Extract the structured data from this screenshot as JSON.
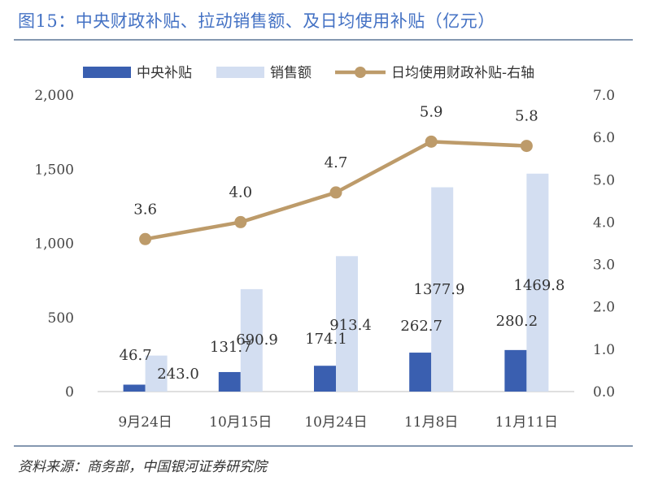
{
  "title": "图15：中央财政补贴、拉动销售额、及日均使用补贴（亿元）",
  "source": "资料来源：商务部，中国银河证券研究院",
  "colors": {
    "title": "#4472c4",
    "bar_subsidy": "#3a5fb0",
    "bar_sales": "#d3def1",
    "line": "#bd9b6a",
    "rule": "#8497b0"
  },
  "chart_data": {
    "type": "bar",
    "categories": [
      "9月24日",
      "10月15日",
      "10月24日",
      "11月8日",
      "11月11日"
    ],
    "series": [
      {
        "name": "中央补贴",
        "type": "bar",
        "axis": "left",
        "values": [
          46.7,
          131.7,
          174.1,
          262.7,
          280.2
        ],
        "labels": [
          "46.7",
          "131.7",
          "174.1",
          "262.7",
          "280.2"
        ]
      },
      {
        "name": "销售额",
        "type": "bar",
        "axis": "left",
        "values": [
          243.0,
          690.9,
          913.4,
          1377.9,
          1469.8
        ],
        "labels": [
          "243.0",
          "690.9",
          "913.4",
          "1377.9",
          "1469.8"
        ]
      },
      {
        "name": "日均使用财政补贴-右轴",
        "type": "line",
        "axis": "right",
        "values": [
          3.6,
          4.0,
          4.7,
          5.9,
          5.8
        ],
        "labels": [
          "3.6",
          "4.0",
          "4.7",
          "5.9",
          "5.8"
        ]
      }
    ],
    "y_left": {
      "range": [
        0,
        2000
      ],
      "ticks": [
        0,
        500,
        1000,
        1500,
        2000
      ],
      "tick_labels": [
        "0",
        "500",
        "1,000",
        "1,500",
        "2,000"
      ]
    },
    "y_right": {
      "range": [
        0,
        7
      ],
      "ticks": [
        0,
        1,
        2,
        3,
        4,
        5,
        6,
        7
      ],
      "tick_labels": [
        "0.0",
        "1.0",
        "2.0",
        "3.0",
        "4.0",
        "5.0",
        "6.0",
        "7.0"
      ]
    },
    "grid": false,
    "legend_position": "top"
  }
}
